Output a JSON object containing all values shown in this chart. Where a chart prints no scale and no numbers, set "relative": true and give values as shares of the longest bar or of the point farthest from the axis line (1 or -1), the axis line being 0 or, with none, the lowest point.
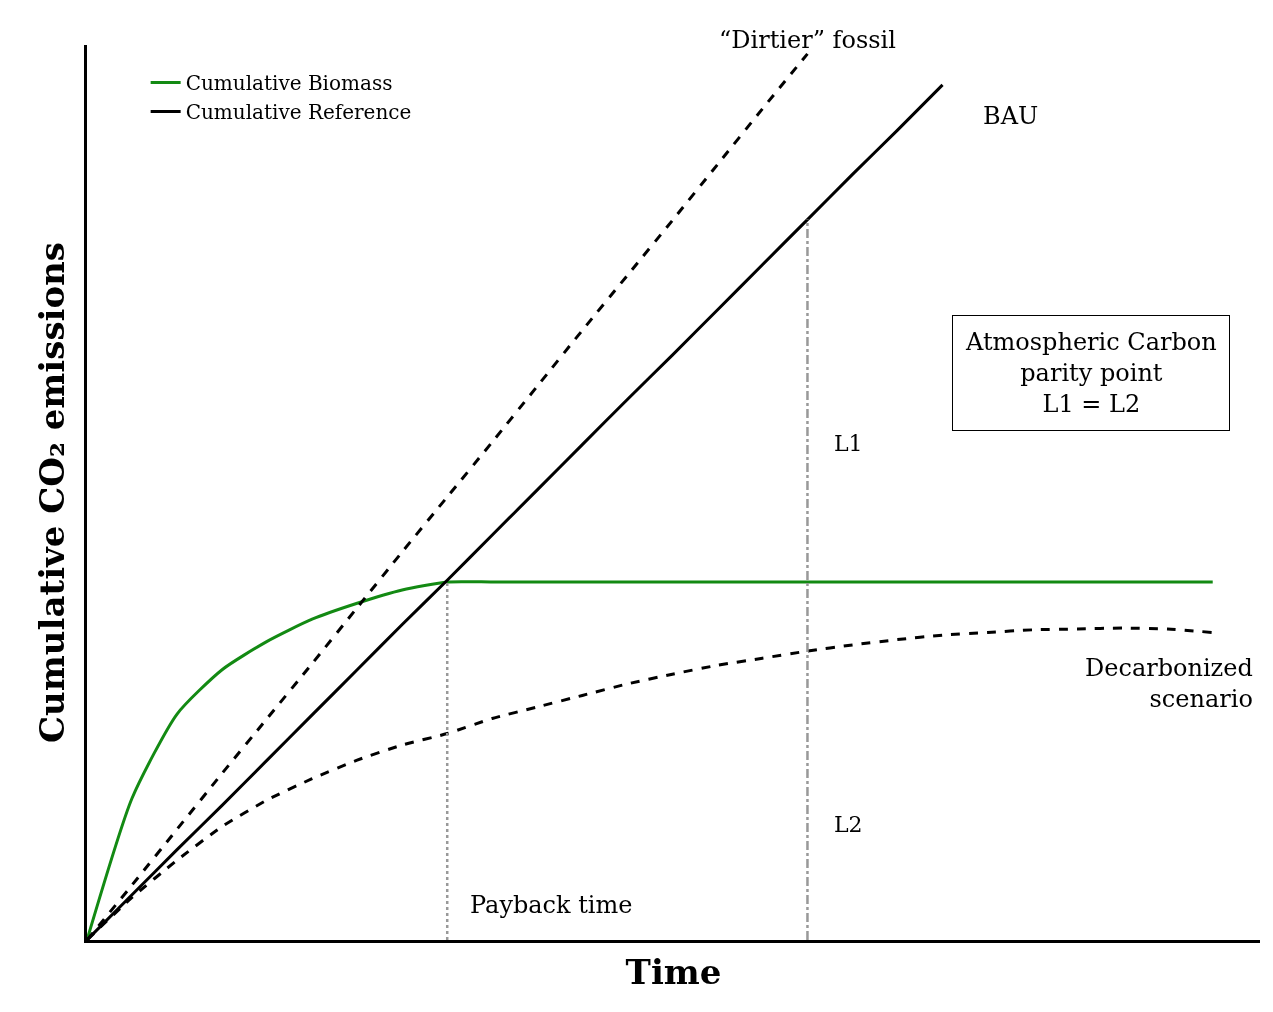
{
  "chart_data": {
    "type": "line",
    "relative": true,
    "xlabel": "Time",
    "ylabel": "Cumulative CO₂ emissions",
    "categories": [
      null,
      null,
      null,
      null,
      null,
      null,
      null,
      null,
      null,
      null,
      null,
      null,
      null,
      null,
      null,
      null,
      null,
      null,
      null,
      null,
      null,
      null,
      null,
      null,
      null,
      null
    ],
    "series": [
      {
        "name": "Cumulative Biomass",
        "color": "#138a13",
        "line_style": "solid",
        "values": [
          0,
          0.16,
          0.255,
          0.305,
          0.337,
          0.362,
          0.38,
          0.395,
          0.404,
          0.404,
          0.404,
          0.404,
          0.404,
          0.404,
          0.404,
          0.404,
          0.404,
          0.404,
          0.404,
          0.404,
          0.404,
          0.404,
          0.404,
          0.404,
          0.404,
          0.404
        ]
      },
      {
        "name": "Cumulative Reference",
        "color": "#000000",
        "line_style": "solid",
        "values": [
          0,
          0.051,
          0.102,
          0.152,
          0.203,
          0.254,
          0.305,
          0.356,
          0.406,
          0.457,
          0.508,
          0.559,
          0.61,
          0.66,
          0.711,
          0.762,
          0.813,
          0.864,
          0.914,
          0.965,
          null,
          null,
          null,
          null,
          null,
          null
        ]
      },
      {
        "color": "#000000",
        "line_style": "dashed",
        "values": [
          0,
          0.062,
          0.125,
          0.188,
          0.25,
          0.312,
          0.375,
          0.438,
          0.5,
          0.562,
          0.625,
          0.688,
          0.75,
          0.812,
          0.875,
          0.938,
          1.0,
          null,
          null,
          null,
          null,
          null,
          null,
          null,
          null,
          null
        ]
      },
      {
        "color": "#000000",
        "line_style": "dashed",
        "values": [
          0,
          0.048,
          0.09,
          0.128,
          0.158,
          0.182,
          0.203,
          0.22,
          0.233,
          0.25,
          0.263,
          0.276,
          0.289,
          0.3,
          0.31,
          0.318,
          0.326,
          0.333,
          0.339,
          0.344,
          0.347,
          0.35,
          0.351,
          0.352,
          0.351,
          0.347
        ]
      }
    ],
    "annotations": [
      "“Dirtier” fossil",
      "BAU",
      "Decarbonized\nscenario",
      "L1",
      "L2",
      "Atmospheric Carbon\nparity point\nL1 = L2",
      "Payback time"
    ],
    "legend": "top left",
    "marker": "none"
  }
}
